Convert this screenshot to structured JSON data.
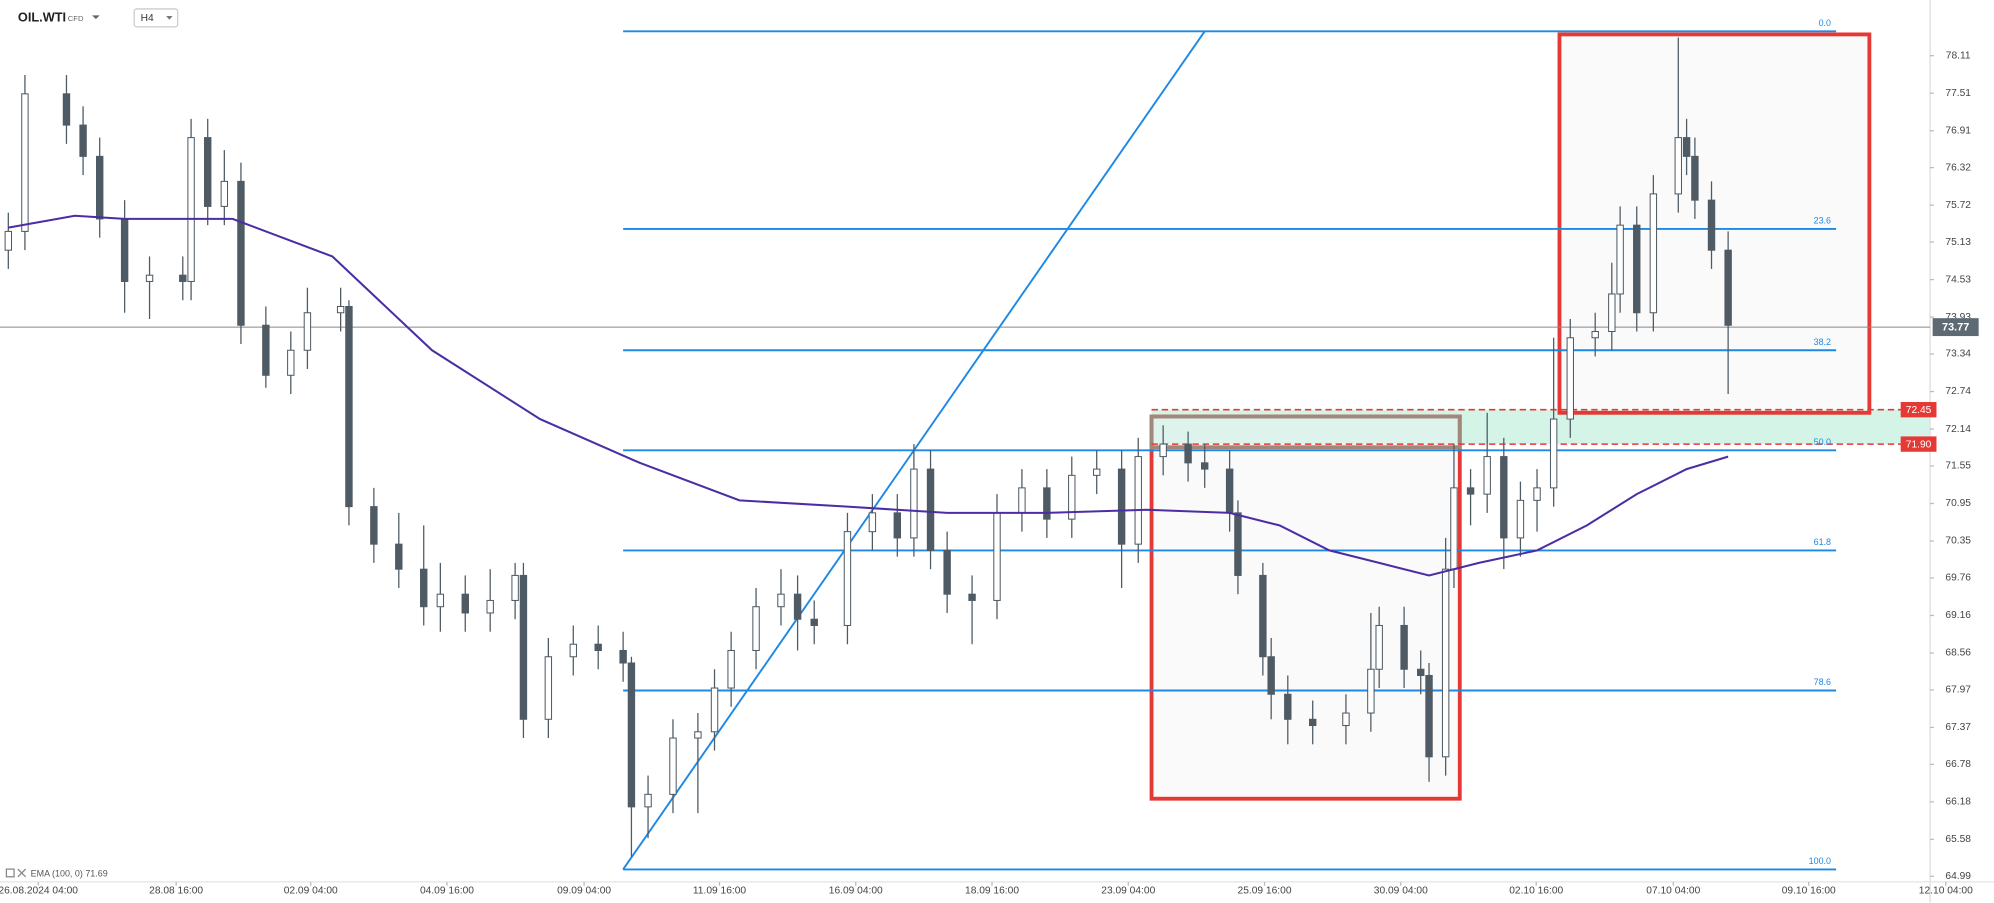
{
  "chart_data": {
    "type": "candlestick",
    "symbol": "OIL.WTI",
    "instrument_type": "CFD",
    "timeframe": "H4",
    "indicator_label": "EMA (100, 0) 71.69",
    "xlim": [
      0,
      240
    ],
    "ylim": [
      64.9,
      79.0
    ],
    "xticks": [
      {
        "value": 4.6,
        "label": "26.08.2024 04:00"
      },
      {
        "value": 21.2,
        "label": "28.08 16:00"
      },
      {
        "value": 37.4,
        "label": "02.09 04:00"
      },
      {
        "value": 53.8,
        "label": "04.09 16:00"
      },
      {
        "value": 70.3,
        "label": "09.09 04:00"
      },
      {
        "value": 86.6,
        "label": "11.09 16:00"
      },
      {
        "value": 103,
        "label": "16.09 04:00"
      },
      {
        "value": 119.4,
        "label": "18.09 16:00"
      },
      {
        "value": 135.8,
        "label": "23.09 04:00"
      },
      {
        "value": 152.2,
        "label": "25.09 16:00"
      },
      {
        "value": 168.6,
        "label": "30.09 04:00"
      },
      {
        "value": 184.9,
        "label": "02.10 16:00"
      },
      {
        "value": 201.4,
        "label": "07.10 04:00"
      },
      {
        "value": 217.7,
        "label": "09.10 16:00"
      },
      {
        "value": 234.2,
        "label": "12.10 04:00"
      }
    ],
    "yticks": [
      78.11,
      77.51,
      76.91,
      76.32,
      75.72,
      75.13,
      74.53,
      73.93,
      73.34,
      72.74,
      72.14,
      71.55,
      70.95,
      70.35,
      69.76,
      69.16,
      68.56,
      67.97,
      67.37,
      66.78,
      66.18,
      65.58,
      64.99
    ],
    "candles": [
      {
        "x": 1,
        "open": 75.0,
        "high": 75.6,
        "low": 74.7,
        "close": 75.3
      },
      {
        "x": 3,
        "open": 75.3,
        "high": 77.8,
        "low": 75.0,
        "close": 77.5
      },
      {
        "x": 8,
        "open": 77.5,
        "high": 77.8,
        "low": 76.7,
        "close": 77.0
      },
      {
        "x": 10,
        "open": 77.0,
        "high": 77.3,
        "low": 76.2,
        "close": 76.5
      },
      {
        "x": 12,
        "open": 76.5,
        "high": 76.8,
        "low": 75.2,
        "close": 75.5
      },
      {
        "x": 15,
        "open": 75.5,
        "high": 75.8,
        "low": 74.0,
        "close": 74.5
      },
      {
        "x": 18,
        "open": 74.5,
        "high": 74.9,
        "low": 73.9,
        "close": 74.6
      },
      {
        "x": 22,
        "open": 74.6,
        "high": 74.9,
        "low": 74.2,
        "close": 74.5
      },
      {
        "x": 23,
        "open": 74.5,
        "high": 77.1,
        "low": 74.2,
        "close": 76.8
      },
      {
        "x": 25,
        "open": 76.8,
        "high": 77.1,
        "low": 75.4,
        "close": 75.7
      },
      {
        "x": 27,
        "open": 75.7,
        "high": 76.6,
        "low": 75.4,
        "close": 76.1
      },
      {
        "x": 29,
        "open": 76.1,
        "high": 76.4,
        "low": 73.5,
        "close": 73.8
      },
      {
        "x": 32,
        "open": 73.8,
        "high": 74.1,
        "low": 72.8,
        "close": 73.0
      },
      {
        "x": 35,
        "open": 73.0,
        "high": 73.7,
        "low": 72.7,
        "close": 73.4
      },
      {
        "x": 37,
        "open": 73.4,
        "high": 74.4,
        "low": 73.1,
        "close": 74.0
      },
      {
        "x": 41,
        "open": 74.0,
        "high": 74.4,
        "low": 73.7,
        "close": 74.1
      },
      {
        "x": 42,
        "open": 74.1,
        "high": 74.2,
        "low": 70.6,
        "close": 70.9
      },
      {
        "x": 45,
        "open": 70.9,
        "high": 71.2,
        "low": 70.0,
        "close": 70.3
      },
      {
        "x": 48,
        "open": 70.3,
        "high": 70.8,
        "low": 69.6,
        "close": 69.9
      },
      {
        "x": 51,
        "open": 69.9,
        "high": 70.6,
        "low": 69.0,
        "close": 69.3
      },
      {
        "x": 53,
        "open": 69.3,
        "high": 70.0,
        "low": 68.9,
        "close": 69.5
      },
      {
        "x": 56,
        "open": 69.5,
        "high": 69.8,
        "low": 68.9,
        "close": 69.2
      },
      {
        "x": 59,
        "open": 69.2,
        "high": 69.9,
        "low": 68.9,
        "close": 69.4
      },
      {
        "x": 62,
        "open": 69.4,
        "high": 70.0,
        "low": 69.1,
        "close": 69.8
      },
      {
        "x": 63,
        "open": 69.8,
        "high": 70.0,
        "low": 67.2,
        "close": 67.5
      },
      {
        "x": 66,
        "open": 67.5,
        "high": 68.8,
        "low": 67.2,
        "close": 68.5
      },
      {
        "x": 69,
        "open": 68.5,
        "high": 69.0,
        "low": 68.2,
        "close": 68.7
      },
      {
        "x": 72,
        "open": 68.7,
        "high": 69.0,
        "low": 68.3,
        "close": 68.6
      },
      {
        "x": 75,
        "open": 68.6,
        "high": 68.9,
        "low": 68.1,
        "close": 68.4
      },
      {
        "x": 76,
        "open": 68.4,
        "high": 68.5,
        "low": 65.3,
        "close": 66.1
      },
      {
        "x": 78,
        "open": 66.1,
        "high": 66.6,
        "low": 65.6,
        "close": 66.3
      },
      {
        "x": 81,
        "open": 66.3,
        "high": 67.5,
        "low": 66.0,
        "close": 67.2
      },
      {
        "x": 84,
        "open": 67.2,
        "high": 67.6,
        "low": 66.0,
        "close": 67.3
      },
      {
        "x": 86,
        "open": 67.3,
        "high": 68.3,
        "low": 67.0,
        "close": 68.0
      },
      {
        "x": 88,
        "open": 68.0,
        "high": 68.9,
        "low": 67.7,
        "close": 68.6
      },
      {
        "x": 91,
        "open": 68.6,
        "high": 69.6,
        "low": 68.3,
        "close": 69.3
      },
      {
        "x": 94,
        "open": 69.3,
        "high": 69.9,
        "low": 69.0,
        "close": 69.5
      },
      {
        "x": 96,
        "open": 69.5,
        "high": 69.8,
        "low": 68.6,
        "close": 69.1
      },
      {
        "x": 98,
        "open": 69.1,
        "high": 69.4,
        "low": 68.7,
        "close": 69.0
      },
      {
        "x": 102,
        "open": 69.0,
        "high": 70.8,
        "low": 68.7,
        "close": 70.5
      },
      {
        "x": 105,
        "open": 70.5,
        "high": 71.1,
        "low": 70.2,
        "close": 70.8
      },
      {
        "x": 108,
        "open": 70.8,
        "high": 71.1,
        "low": 70.1,
        "close": 70.4
      },
      {
        "x": 110,
        "open": 70.4,
        "high": 71.9,
        "low": 70.1,
        "close": 71.5
      },
      {
        "x": 112,
        "open": 71.5,
        "high": 71.8,
        "low": 69.9,
        "close": 70.2
      },
      {
        "x": 114,
        "open": 70.2,
        "high": 70.5,
        "low": 69.2,
        "close": 69.5
      },
      {
        "x": 117,
        "open": 69.5,
        "high": 69.8,
        "low": 68.7,
        "close": 69.4
      },
      {
        "x": 120,
        "open": 69.4,
        "high": 71.1,
        "low": 69.1,
        "close": 70.8
      },
      {
        "x": 123,
        "open": 70.8,
        "high": 71.5,
        "low": 70.5,
        "close": 71.2
      },
      {
        "x": 126,
        "open": 71.2,
        "high": 71.5,
        "low": 70.4,
        "close": 70.7
      },
      {
        "x": 129,
        "open": 70.7,
        "high": 71.7,
        "low": 70.4,
        "close": 71.4
      },
      {
        "x": 132,
        "open": 71.4,
        "high": 71.8,
        "low": 71.1,
        "close": 71.5
      },
      {
        "x": 135,
        "open": 71.5,
        "high": 71.8,
        "low": 69.6,
        "close": 70.3
      },
      {
        "x": 137,
        "open": 70.3,
        "high": 72.0,
        "low": 70.0,
        "close": 71.7
      },
      {
        "x": 140,
        "open": 71.7,
        "high": 72.2,
        "low": 71.4,
        "close": 71.9
      },
      {
        "x": 143,
        "open": 71.9,
        "high": 72.1,
        "low": 71.3,
        "close": 71.6
      },
      {
        "x": 145,
        "open": 71.6,
        "high": 71.9,
        "low": 71.2,
        "close": 71.5
      },
      {
        "x": 148,
        "open": 71.5,
        "high": 71.8,
        "low": 70.5,
        "close": 70.8
      },
      {
        "x": 149,
        "open": 70.8,
        "high": 71.0,
        "low": 69.5,
        "close": 69.8
      },
      {
        "x": 152,
        "open": 69.8,
        "high": 70.0,
        "low": 68.2,
        "close": 68.5
      },
      {
        "x": 153,
        "open": 68.5,
        "high": 68.8,
        "low": 67.5,
        "close": 67.9
      },
      {
        "x": 155,
        "open": 67.9,
        "high": 68.2,
        "low": 67.1,
        "close": 67.5
      },
      {
        "x": 158,
        "open": 67.5,
        "high": 67.8,
        "low": 67.1,
        "close": 67.4
      },
      {
        "x": 162,
        "open": 67.4,
        "high": 67.9,
        "low": 67.1,
        "close": 67.6
      },
      {
        "x": 165,
        "open": 67.6,
        "high": 69.2,
        "low": 67.3,
        "close": 68.3
      },
      {
        "x": 166,
        "open": 68.3,
        "high": 69.3,
        "low": 68.0,
        "close": 69.0
      },
      {
        "x": 169,
        "open": 69.0,
        "high": 69.3,
        "low": 68.0,
        "close": 68.3
      },
      {
        "x": 171,
        "open": 68.3,
        "high": 68.6,
        "low": 67.9,
        "close": 68.2
      },
      {
        "x": 172,
        "open": 68.2,
        "high": 68.4,
        "low": 66.5,
        "close": 66.9
      },
      {
        "x": 174,
        "open": 66.9,
        "high": 70.4,
        "low": 66.6,
        "close": 69.9
      },
      {
        "x": 175,
        "open": 69.9,
        "high": 71.9,
        "low": 69.6,
        "close": 71.2
      },
      {
        "x": 177,
        "open": 71.2,
        "high": 71.5,
        "low": 70.6,
        "close": 71.1
      },
      {
        "x": 179,
        "open": 71.1,
        "high": 72.4,
        "low": 70.8,
        "close": 71.7
      },
      {
        "x": 181,
        "open": 71.7,
        "high": 72.0,
        "low": 69.9,
        "close": 70.4
      },
      {
        "x": 183,
        "open": 70.4,
        "high": 71.3,
        "low": 70.1,
        "close": 71.0
      },
      {
        "x": 185,
        "open": 71.0,
        "high": 71.5,
        "low": 70.5,
        "close": 71.2
      },
      {
        "x": 187,
        "open": 71.2,
        "high": 73.6,
        "low": 70.9,
        "close": 72.3
      },
      {
        "x": 189,
        "open": 72.3,
        "high": 73.9,
        "low": 72.0,
        "close": 73.6
      },
      {
        "x": 192,
        "open": 73.6,
        "high": 74.0,
        "low": 73.3,
        "close": 73.7
      },
      {
        "x": 194,
        "open": 73.7,
        "high": 74.8,
        "low": 73.4,
        "close": 74.3
      },
      {
        "x": 195,
        "open": 74.3,
        "high": 75.7,
        "low": 74.0,
        "close": 75.4
      },
      {
        "x": 197,
        "open": 75.4,
        "high": 75.7,
        "low": 73.7,
        "close": 74.0
      },
      {
        "x": 199,
        "open": 74.0,
        "high": 76.2,
        "low": 73.7,
        "close": 75.9
      },
      {
        "x": 202,
        "open": 75.9,
        "high": 78.4,
        "low": 75.6,
        "close": 76.8
      },
      {
        "x": 203,
        "open": 76.8,
        "high": 77.1,
        "low": 76.2,
        "close": 76.5
      },
      {
        "x": 204,
        "open": 76.5,
        "high": 76.8,
        "low": 75.5,
        "close": 75.8
      },
      {
        "x": 206,
        "open": 75.8,
        "high": 76.1,
        "low": 74.7,
        "close": 75.0
      },
      {
        "x": 208,
        "open": 75.0,
        "high": 75.3,
        "low": 72.7,
        "close": 73.8
      }
    ],
    "ema": {
      "color": "#4b2ea3",
      "x": [
        1,
        9,
        15,
        28,
        40,
        52,
        65,
        77,
        89,
        102,
        114,
        126,
        138,
        148,
        154,
        160,
        166,
        172,
        178,
        185,
        191,
        197,
        203,
        208
      ],
      "values": [
        75.36,
        75.55,
        75.5,
        75.5,
        74.9,
        73.4,
        72.3,
        71.6,
        71.0,
        70.9,
        70.8,
        70.8,
        70.85,
        70.8,
        70.6,
        70.2,
        70.0,
        69.8,
        70.0,
        70.2,
        70.6,
        71.1,
        71.5,
        71.7
      ]
    },
    "trendline": {
      "color": "#1e88e5",
      "x": [
        75,
        145
      ],
      "values": [
        65.1,
        78.5
      ]
    },
    "fib": {
      "color": "#1e88e5",
      "x": [
        75,
        221
      ],
      "levels": [
        {
          "level": {
            "value": 0,
            "label": "0.0"
          },
          "price": 78.5
        },
        {
          "level": 23.6,
          "price": 75.34
        },
        {
          "level": 38.2,
          "price": 73.4
        },
        {
          "level": {
            "value": 50,
            "label": "50.0"
          },
          "price": 71.8
        },
        {
          "level": 61.8,
          "price": 70.2
        },
        {
          "level": 78.6,
          "price": 67.96
        },
        {
          "level": {
            "value": 100,
            "label": "100.0"
          },
          "price": 65.1
        }
      ]
    },
    "zone": {
      "color": "#c9f1e2",
      "x": [
        138.6,
        232.3
      ],
      "levels": [
        72.45,
        {
          "value": 71.9,
          "label": "71.90"
        }
      ],
      "tag_color": "#e53935"
    },
    "boxes": [
      {
        "color": "#e53935",
        "x": [
          138.6,
          175.7
        ],
        "values": [
          72.34,
          66.23
        ]
      },
      {
        "color": "#e53935",
        "x": [
          187.7,
          225
        ],
        "values": [
          78.45,
          72.4
        ]
      },
      {
        "color": "#a0887a",
        "x": [
          138.6,
          175.7
        ],
        "values": [
          72.34,
          71.85
        ]
      }
    ],
    "last_price": 73.77
  }
}
